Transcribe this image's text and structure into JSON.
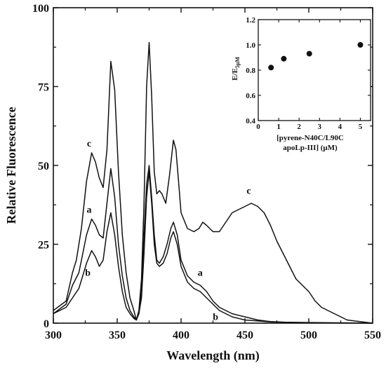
{
  "chart_data": [
    {
      "type": "line",
      "xlabel": "Wavelength (nm)",
      "ylabel": "Relative Fluorescence",
      "xlim": [
        300,
        550
      ],
      "ylim": [
        0,
        100
      ],
      "x_ticks": [
        300,
        350,
        400,
        450,
        500,
        550
      ],
      "y_ticks": [
        0,
        25,
        50,
        75,
        100
      ],
      "legend": "none",
      "grid": false,
      "series": [
        {
          "name": "c",
          "points": [
            [
              300,
              4
            ],
            [
              310,
              7
            ],
            [
              315,
              16
            ],
            [
              318,
              20
            ],
            [
              322,
              30
            ],
            [
              326,
              45
            ],
            [
              330,
              54
            ],
            [
              333,
              51
            ],
            [
              336,
              46
            ],
            [
              339,
              43
            ],
            [
              342,
              55
            ],
            [
              345,
              83
            ],
            [
              348,
              74
            ],
            [
              351,
              48
            ],
            [
              354,
              28
            ],
            [
              357,
              16
            ],
            [
              360,
              8
            ],
            [
              363,
              4
            ],
            [
              365,
              1
            ],
            [
              367,
              4
            ],
            [
              369,
              14
            ],
            [
              371,
              38
            ],
            [
              373,
              75
            ],
            [
              375,
              89
            ],
            [
              377,
              72
            ],
            [
              379,
              48
            ],
            [
              381,
              41
            ],
            [
              383,
              42
            ],
            [
              385,
              41
            ],
            [
              388,
              38
            ],
            [
              391,
              47
            ],
            [
              394,
              58
            ],
            [
              396,
              55
            ],
            [
              398,
              45
            ],
            [
              400,
              35
            ],
            [
              405,
              30
            ],
            [
              410,
              29
            ],
            [
              414,
              30
            ],
            [
              417,
              32
            ],
            [
              420,
              31
            ],
            [
              425,
              29
            ],
            [
              430,
              29
            ],
            [
              435,
              32
            ],
            [
              440,
              35
            ],
            [
              445,
              36
            ],
            [
              450,
              37
            ],
            [
              455,
              38
            ],
            [
              460,
              37
            ],
            [
              465,
              35
            ],
            [
              470,
              31
            ],
            [
              475,
              26
            ],
            [
              480,
              22
            ],
            [
              485,
              18
            ],
            [
              490,
              14
            ],
            [
              495,
              12
            ],
            [
              500,
              10
            ],
            [
              505,
              7
            ],
            [
              510,
              5
            ],
            [
              520,
              3
            ],
            [
              530,
              1
            ],
            [
              540,
              0.5
            ],
            [
              550,
              0
            ]
          ]
        },
        {
          "name": "a",
          "points": [
            [
              300,
              3
            ],
            [
              310,
              6
            ],
            [
              315,
              12
            ],
            [
              320,
              16
            ],
            [
              323,
              22
            ],
            [
              326,
              28
            ],
            [
              330,
              33
            ],
            [
              333,
              31
            ],
            [
              336,
              28
            ],
            [
              339,
              27
            ],
            [
              342,
              38
            ],
            [
              345,
              49
            ],
            [
              348,
              40
            ],
            [
              351,
              25
            ],
            [
              354,
              15
            ],
            [
              357,
              8
            ],
            [
              360,
              4
            ],
            [
              363,
              2
            ],
            [
              365,
              1
            ],
            [
              367,
              3
            ],
            [
              369,
              10
            ],
            [
              371,
              28
            ],
            [
              373,
              44
            ],
            [
              375,
              50
            ],
            [
              377,
              40
            ],
            [
              379,
              28
            ],
            [
              381,
              20
            ],
            [
              383,
              19
            ],
            [
              386,
              21
            ],
            [
              389,
              25
            ],
            [
              392,
              30
            ],
            [
              394,
              32
            ],
            [
              397,
              28
            ],
            [
              400,
              20
            ],
            [
              405,
              15
            ],
            [
              410,
              13
            ],
            [
              415,
              12
            ],
            [
              420,
              10
            ],
            [
              425,
              7
            ],
            [
              430,
              5
            ],
            [
              435,
              4
            ],
            [
              440,
              3
            ],
            [
              445,
              2.5
            ],
            [
              450,
              2
            ],
            [
              460,
              1
            ],
            [
              470,
              0.5
            ],
            [
              480,
              0.3
            ],
            [
              500,
              0.2
            ],
            [
              550,
              0
            ]
          ]
        },
        {
          "name": "b",
          "points": [
            [
              300,
              3
            ],
            [
              310,
              5
            ],
            [
              315,
              8
            ],
            [
              320,
              11
            ],
            [
              323,
              15
            ],
            [
              326,
              19
            ],
            [
              330,
              23
            ],
            [
              333,
              21
            ],
            [
              336,
              18
            ],
            [
              339,
              20
            ],
            [
              342,
              29
            ],
            [
              345,
              35
            ],
            [
              348,
              28
            ],
            [
              351,
              18
            ],
            [
              354,
              10
            ],
            [
              357,
              5
            ],
            [
              360,
              3
            ],
            [
              363,
              1.5
            ],
            [
              365,
              1
            ],
            [
              367,
              3
            ],
            [
              369,
              8
            ],
            [
              371,
              22
            ],
            [
              373,
              40
            ],
            [
              375,
              48
            ],
            [
              377,
              38
            ],
            [
              379,
              25
            ],
            [
              381,
              19
            ],
            [
              383,
              18
            ],
            [
              386,
              19
            ],
            [
              389,
              22
            ],
            [
              392,
              27
            ],
            [
              394,
              29
            ],
            [
              397,
              25
            ],
            [
              400,
              18
            ],
            [
              405,
              13
            ],
            [
              410,
              11
            ],
            [
              415,
              10
            ],
            [
              420,
              8
            ],
            [
              425,
              6
            ],
            [
              430,
              4
            ],
            [
              435,
              3
            ],
            [
              440,
              2
            ],
            [
              445,
              1.5
            ],
            [
              450,
              1
            ],
            [
              460,
              0.7
            ],
            [
              470,
              0.4
            ],
            [
              480,
              0.3
            ],
            [
              500,
              0.1
            ],
            [
              550,
              0
            ]
          ]
        }
      ],
      "annotations": [
        {
          "text": "c",
          "x": 328,
          "y": 56
        },
        {
          "text": "a",
          "x": 328,
          "y": 35
        },
        {
          "text": "b",
          "x": 327,
          "y": 15
        },
        {
          "text": "c",
          "x": 453,
          "y": 41
        },
        {
          "text": "a",
          "x": 415,
          "y": 15
        },
        {
          "text": "b",
          "x": 427,
          "y": 1
        }
      ]
    },
    {
      "type": "scatter",
      "xlabel_lines": [
        "[pyrene-N40C/L90C",
        "apoLp-III] (μM)"
      ],
      "ylabel_main": "E/E",
      "ylabel_sub": "5μM",
      "xlim": [
        0,
        5.5
      ],
      "ylim": [
        0.4,
        1.2
      ],
      "x_ticks": [
        0,
        1,
        2,
        3,
        4,
        5
      ],
      "y_ticks": [
        0.4,
        0.6,
        0.8,
        1.0,
        1.2
      ],
      "y_tick_labels": [
        "0.4",
        "0.6",
        "0.8",
        "1.0",
        "1.2"
      ],
      "x": [
        0.625,
        1.25,
        2.5,
        5
      ],
      "y": [
        0.82,
        0.89,
        0.93,
        1.0
      ]
    }
  ]
}
